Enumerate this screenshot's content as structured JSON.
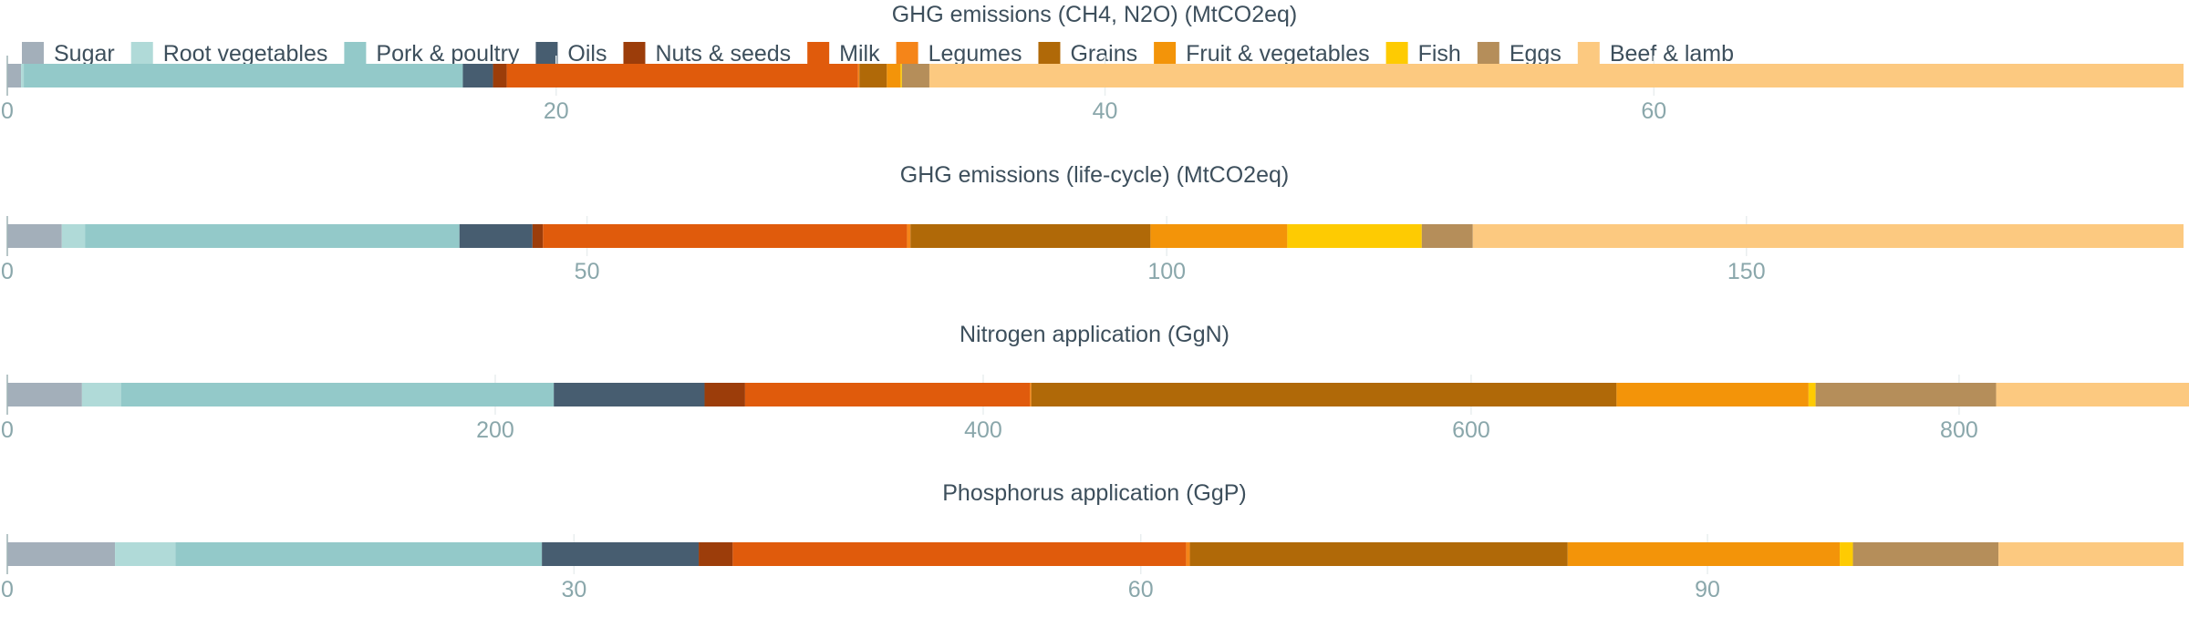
{
  "legend": {
    "items": [
      {
        "name": "Sugar",
        "color": "#a3afba"
      },
      {
        "name": "Root vegetables",
        "color": "#b0dad8"
      },
      {
        "name": "Pork & poultry",
        "color": "#93c9c9"
      },
      {
        "name": "Oils",
        "color": "#475d70"
      },
      {
        "name": "Nuts & seeds",
        "color": "#9c3d0a"
      },
      {
        "name": "Milk",
        "color": "#e05b0c"
      },
      {
        "name": "Legumes",
        "color": "#f58519"
      },
      {
        "name": "Grains",
        "color": "#b06908"
      },
      {
        "name": "Fruit & vegetables",
        "color": "#f39409"
      },
      {
        "name": "Fish",
        "color": "#fecb02"
      },
      {
        "name": "Eggs",
        "color": "#b58e5a"
      },
      {
        "name": "Beef & lamb",
        "color": "#fcc980"
      }
    ]
  },
  "chart_data": [
    {
      "type": "bar",
      "orientation": "horizontal",
      "stacked": true,
      "title": "GHG emissions (CH4, N2O) (MtCO2eq)",
      "xlim": [
        0,
        79.3
      ],
      "xticks": [
        0,
        20,
        40,
        60
      ],
      "grid": true,
      "legend": "top-left",
      "series": [
        {
          "name": "Sugar",
          "value": 0.5
        },
        {
          "name": "Root vegetables",
          "value": 0.1
        },
        {
          "name": "Pork & poultry",
          "value": 16.0
        },
        {
          "name": "Oils",
          "value": 1.1
        },
        {
          "name": "Nuts & seeds",
          "value": 0.5
        },
        {
          "name": "Milk",
          "value": 12.8
        },
        {
          "name": "Legumes",
          "value": 0.05
        },
        {
          "name": "Grains",
          "value": 1.0
        },
        {
          "name": "Fruit & vegetables",
          "value": 0.5
        },
        {
          "name": "Fish",
          "value": 0.05
        },
        {
          "name": "Eggs",
          "value": 1.0
        },
        {
          "name": "Beef & lamb",
          "value": 45.7
        }
      ]
    },
    {
      "type": "bar",
      "orientation": "horizontal",
      "stacked": true,
      "title": "GHG emissions (life-cycle) (MtCO2eq)",
      "xlim": [
        0,
        187.7
      ],
      "xticks": [
        0,
        50,
        100,
        150
      ],
      "grid": true,
      "series": [
        {
          "name": "Sugar",
          "value": 4.7
        },
        {
          "name": "Root vegetables",
          "value": 2.0
        },
        {
          "name": "Pork & poultry",
          "value": 32.3
        },
        {
          "name": "Oils",
          "value": 6.3
        },
        {
          "name": "Nuts & seeds",
          "value": 0.9
        },
        {
          "name": "Milk",
          "value": 31.4
        },
        {
          "name": "Legumes",
          "value": 0.3
        },
        {
          "name": "Grains",
          "value": 20.7
        },
        {
          "name": "Fruit & vegetables",
          "value": 11.8
        },
        {
          "name": "Fish",
          "value": 11.6
        },
        {
          "name": "Eggs",
          "value": 4.4
        },
        {
          "name": "Beef & lamb",
          "value": 61.3
        }
      ]
    },
    {
      "type": "bar",
      "orientation": "horizontal",
      "stacked": true,
      "title": "Nitrogen application (GgN)",
      "xlim": [
        0,
        892
      ],
      "xticks": [
        0,
        200,
        400,
        600,
        800
      ],
      "grid": true,
      "series": [
        {
          "name": "Sugar",
          "value": 30.6
        },
        {
          "name": "Root vegetables",
          "value": 16.0
        },
        {
          "name": "Pork & poultry",
          "value": 177.4
        },
        {
          "name": "Oils",
          "value": 61.8
        },
        {
          "name": "Nuts & seeds",
          "value": 16.6
        },
        {
          "name": "Milk",
          "value": 116.7
        },
        {
          "name": "Legumes",
          "value": 0.6
        },
        {
          "name": "Grains",
          "value": 239.9
        },
        {
          "name": "Fruit & vegetables",
          "value": 78.7
        },
        {
          "name": "Fish",
          "value": 2.9
        },
        {
          "name": "Eggs",
          "value": 74.0
        },
        {
          "name": "Beef & lamb",
          "value": 79.3
        }
      ]
    },
    {
      "type": "bar",
      "orientation": "horizontal",
      "stacked": true,
      "title": "Phosphorus application (GgP)",
      "xlim": [
        0,
        115.2
      ],
      "xticks": [
        0,
        30,
        60,
        90
      ],
      "grid": true,
      "series": [
        {
          "name": "Sugar",
          "value": 5.7
        },
        {
          "name": "Root vegetables",
          "value": 3.2
        },
        {
          "name": "Pork & poultry",
          "value": 19.4
        },
        {
          "name": "Oils",
          "value": 8.3
        },
        {
          "name": "Nuts & seeds",
          "value": 1.8
        },
        {
          "name": "Milk",
          "value": 24.0
        },
        {
          "name": "Legumes",
          "value": 0.2
        },
        {
          "name": "Grains",
          "value": 20.0
        },
        {
          "name": "Fruit & vegetables",
          "value": 14.4
        },
        {
          "name": "Fish",
          "value": 0.7
        },
        {
          "name": "Eggs",
          "value": 7.7
        },
        {
          "name": "Beef & lamb",
          "value": 9.8
        }
      ]
    }
  ]
}
